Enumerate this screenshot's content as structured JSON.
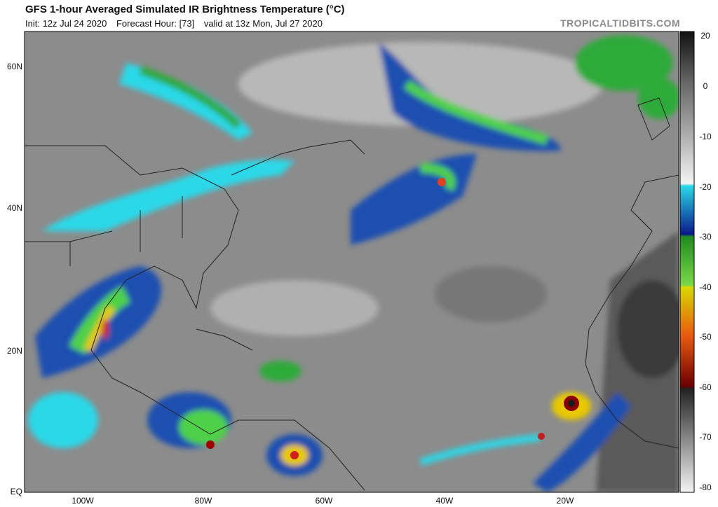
{
  "header": {
    "title": "GFS 1-hour Averaged Simulated IR Brightness Temperature (°C)",
    "init": "Init: 12z Jul 24 2020",
    "forecast_hour": "Forecast Hour: [73]",
    "valid": "valid at 13z Mon, Jul 27 2020",
    "site": "TROPICALTIDBITS.COM"
  },
  "map": {
    "lat_labels": [
      "60N",
      "40N",
      "20N",
      "EQ"
    ],
    "lon_labels": [
      "100W",
      "80W",
      "60W",
      "40W",
      "20W"
    ]
  },
  "colorbar": {
    "ticks": [
      20,
      0,
      -10,
      -20,
      -30,
      -40,
      -50,
      -60,
      -70,
      -80
    ]
  }
}
